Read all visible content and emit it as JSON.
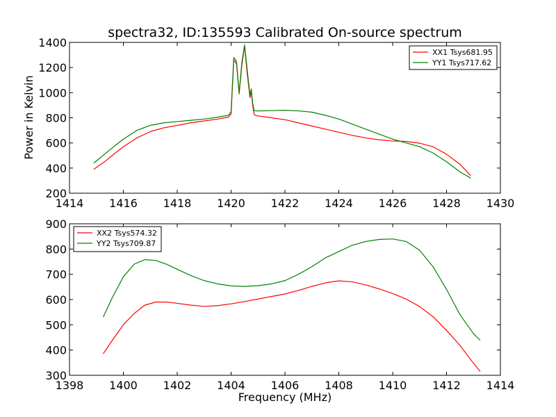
{
  "chart_data": [
    {
      "type": "line",
      "title": "spectra32, ID:135593 Calibrated On-source spectrum",
      "xlabel": "",
      "ylabel": "Power in Kelvin",
      "xlim": [
        1414,
        1430
      ],
      "ylim": [
        200,
        1400
      ],
      "xticks": [
        1414,
        1416,
        1418,
        1420,
        1422,
        1424,
        1426,
        1428,
        1430
      ],
      "yticks": [
        200,
        400,
        600,
        800,
        1000,
        1200,
        1400
      ],
      "grid": false,
      "legend": "top-right",
      "series": [
        {
          "name": "XX1 Tsys681.95",
          "color": "#ff0000",
          "x": [
            1414.9,
            1415.3,
            1415.7,
            1416.0,
            1416.5,
            1417.0,
            1417.5,
            1418.0,
            1418.5,
            1419.0,
            1419.5,
            1419.9,
            1420.0,
            1420.1,
            1420.2,
            1420.3,
            1420.4,
            1420.5,
            1420.6,
            1420.7,
            1420.75,
            1420.8,
            1420.85,
            1420.9,
            1421.0,
            1421.5,
            1422.0,
            1422.5,
            1423.0,
            1423.5,
            1424.0,
            1424.5,
            1425.0,
            1425.5,
            1426.0,
            1426.5,
            1427.0,
            1427.5,
            1428.0,
            1428.5,
            1428.9
          ],
          "values": [
            390,
            450,
            520,
            570,
            640,
            690,
            720,
            740,
            760,
            775,
            790,
            805,
            830,
            1260,
            1230,
            990,
            1220,
            1370,
            1150,
            960,
            1010,
            900,
            830,
            820,
            815,
            800,
            785,
            760,
            735,
            710,
            685,
            660,
            640,
            625,
            615,
            612,
            598,
            570,
            510,
            430,
            340
          ]
        },
        {
          "name": "YY1 Tsys717.62",
          "color": "#008000",
          "x": [
            1414.9,
            1415.3,
            1415.7,
            1416.0,
            1416.5,
            1417.0,
            1417.5,
            1418.0,
            1418.5,
            1419.0,
            1419.5,
            1419.9,
            1420.0,
            1420.1,
            1420.2,
            1420.3,
            1420.4,
            1420.5,
            1420.6,
            1420.7,
            1420.75,
            1420.8,
            1420.85,
            1420.9,
            1421.0,
            1421.5,
            1422.0,
            1422.5,
            1423.0,
            1423.5,
            1424.0,
            1424.5,
            1425.0,
            1425.5,
            1426.0,
            1426.5,
            1427.0,
            1427.5,
            1428.0,
            1428.5,
            1428.9
          ],
          "values": [
            440,
            510,
            580,
            630,
            700,
            740,
            760,
            770,
            780,
            790,
            805,
            820,
            850,
            1280,
            1250,
            1000,
            1240,
            1380,
            1180,
            980,
            1030,
            920,
            860,
            855,
            855,
            857,
            860,
            855,
            845,
            820,
            790,
            750,
            710,
            670,
            630,
            600,
            570,
            520,
            450,
            370,
            320
          ]
        }
      ]
    },
    {
      "type": "line",
      "title": "",
      "xlabel": "Frequency (MHz)",
      "ylabel": "",
      "xlim": [
        1398,
        1414
      ],
      "ylim": [
        300,
        900
      ],
      "xticks": [
        1398,
        1400,
        1402,
        1404,
        1406,
        1408,
        1410,
        1412,
        1414
      ],
      "yticks": [
        300,
        400,
        500,
        600,
        700,
        800,
        900
      ],
      "grid": false,
      "legend": "top-left",
      "series": [
        {
          "name": "XX2 Tsys574.32",
          "color": "#ff0000",
          "x": [
            1399.25,
            1399.6,
            1400.0,
            1400.4,
            1400.8,
            1401.2,
            1401.6,
            1402.0,
            1402.5,
            1403.0,
            1403.5,
            1404.0,
            1404.5,
            1405.0,
            1405.5,
            1406.0,
            1406.5,
            1407.0,
            1407.5,
            1408.0,
            1408.5,
            1409.0,
            1409.5,
            1410.0,
            1410.5,
            1411.0,
            1411.5,
            1412.0,
            1412.5,
            1413.0,
            1413.25
          ],
          "values": [
            385,
            440,
            500,
            545,
            578,
            590,
            590,
            585,
            578,
            573,
            576,
            583,
            592,
            602,
            612,
            622,
            636,
            652,
            666,
            674,
            670,
            658,
            642,
            624,
            602,
            572,
            532,
            478,
            418,
            348,
            315
          ]
        },
        {
          "name": "YY2 Tsys709.87",
          "color": "#008000",
          "x": [
            1399.25,
            1399.6,
            1400.0,
            1400.4,
            1400.8,
            1401.2,
            1401.6,
            1402.0,
            1402.5,
            1403.0,
            1403.5,
            1404.0,
            1404.5,
            1405.0,
            1405.5,
            1406.0,
            1406.5,
            1407.0,
            1407.5,
            1408.0,
            1408.5,
            1409.0,
            1409.5,
            1410.0,
            1410.5,
            1411.0,
            1411.5,
            1412.0,
            1412.5,
            1413.0,
            1413.25
          ],
          "values": [
            530,
            610,
            690,
            740,
            758,
            755,
            740,
            720,
            695,
            675,
            662,
            654,
            652,
            655,
            662,
            675,
            700,
            730,
            765,
            790,
            815,
            830,
            838,
            840,
            830,
            795,
            730,
            640,
            540,
            465,
            438
          ]
        }
      ]
    }
  ]
}
